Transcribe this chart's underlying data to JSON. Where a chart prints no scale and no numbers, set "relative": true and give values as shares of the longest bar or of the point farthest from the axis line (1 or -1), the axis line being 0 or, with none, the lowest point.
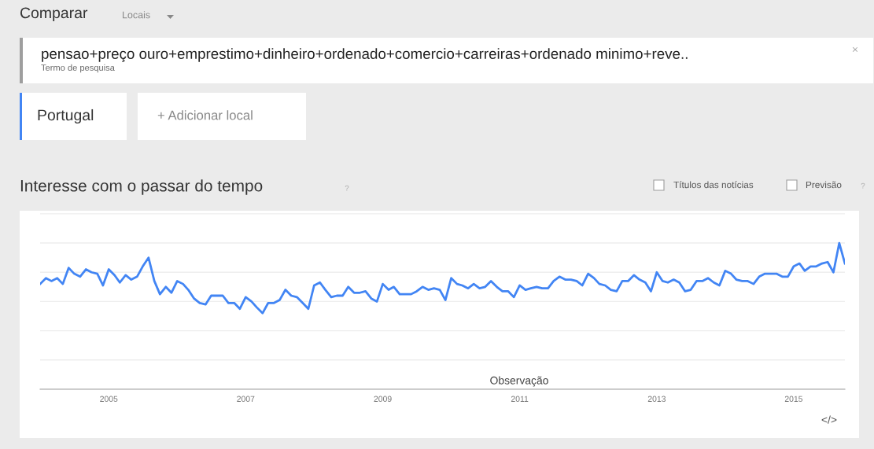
{
  "chart_data": {
    "type": "line",
    "title": "Interesse com o passar do tempo",
    "relative": true,
    "x": [
      "2004-01",
      "2004-02",
      "2004-03",
      "2004-04",
      "2004-05",
      "2004-06",
      "2004-07",
      "2004-08",
      "2004-09",
      "2004-10",
      "2004-11",
      "2004-12",
      "2005-01",
      "2005-02",
      "2005-03",
      "2005-04",
      "2005-05",
      "2005-06",
      "2005-07",
      "2005-08",
      "2005-09",
      "2005-10",
      "2005-11",
      "2005-12",
      "2006-01",
      "2006-02",
      "2006-03",
      "2006-04",
      "2006-05",
      "2006-06",
      "2006-07",
      "2006-08",
      "2006-09",
      "2006-10",
      "2006-11",
      "2006-12",
      "2007-01",
      "2007-02",
      "2007-03",
      "2007-04",
      "2007-05",
      "2007-06",
      "2007-07",
      "2007-08",
      "2007-09",
      "2007-10",
      "2007-11",
      "2007-12",
      "2008-01",
      "2008-02",
      "2008-03",
      "2008-04",
      "2008-05",
      "2008-06",
      "2008-07",
      "2008-08",
      "2008-09",
      "2008-10",
      "2008-11",
      "2008-12",
      "2009-01",
      "2009-02",
      "2009-03",
      "2009-04",
      "2009-05",
      "2009-06",
      "2009-07",
      "2009-08",
      "2009-09",
      "2009-10",
      "2009-11",
      "2009-12",
      "2010-01",
      "2010-02",
      "2010-03",
      "2010-04",
      "2010-05",
      "2010-06",
      "2010-07",
      "2010-08",
      "2010-09",
      "2010-10",
      "2010-11",
      "2010-12",
      "2011-01",
      "2011-02",
      "2011-03",
      "2011-04",
      "2011-05",
      "2011-06",
      "2011-07",
      "2011-08",
      "2011-09",
      "2011-10",
      "2011-11",
      "2011-12",
      "2012-01",
      "2012-02",
      "2012-03",
      "2012-04",
      "2012-05",
      "2012-06",
      "2012-07",
      "2012-08",
      "2012-09",
      "2012-10",
      "2012-11",
      "2012-12",
      "2013-01",
      "2013-02",
      "2013-03",
      "2013-04",
      "2013-05",
      "2013-06",
      "2013-07",
      "2013-08",
      "2013-09",
      "2013-10",
      "2013-11",
      "2013-12",
      "2014-01",
      "2014-02",
      "2014-03",
      "2014-04",
      "2014-05",
      "2014-06",
      "2014-07",
      "2014-08",
      "2014-09",
      "2014-10",
      "2014-11",
      "2014-12",
      "2015-01",
      "2015-02",
      "2015-03",
      "2015-04",
      "2015-05",
      "2015-06",
      "2015-07",
      "2015-08",
      "2015-09",
      "2015-10"
    ],
    "series": [
      {
        "color": "#4285f4",
        "values": [
          0.72,
          0.76,
          0.74,
          0.76,
          0.72,
          0.83,
          0.79,
          0.77,
          0.82,
          0.8,
          0.79,
          0.71,
          0.82,
          0.78,
          0.73,
          0.78,
          0.75,
          0.77,
          0.84,
          0.9,
          0.74,
          0.65,
          0.7,
          0.66,
          0.74,
          0.72,
          0.68,
          0.62,
          0.59,
          0.58,
          0.64,
          0.64,
          0.64,
          0.59,
          0.59,
          0.55,
          0.63,
          0.6,
          0.56,
          0.52,
          0.59,
          0.59,
          0.61,
          0.68,
          0.64,
          0.63,
          0.59,
          0.55,
          0.71,
          0.73,
          0.68,
          0.63,
          0.64,
          0.64,
          0.7,
          0.66,
          0.66,
          0.67,
          0.62,
          0.6,
          0.72,
          0.68,
          0.7,
          0.65,
          0.65,
          0.65,
          0.67,
          0.7,
          0.68,
          0.69,
          0.68,
          0.61,
          0.76,
          0.72,
          0.71,
          0.69,
          0.72,
          0.69,
          0.7,
          0.74,
          0.7,
          0.67,
          0.67,
          0.63,
          0.71,
          0.68,
          0.69,
          0.7,
          0.69,
          0.69,
          0.74,
          0.77,
          0.75,
          0.75,
          0.74,
          0.71,
          0.79,
          0.76,
          0.72,
          0.71,
          0.68,
          0.67,
          0.74,
          0.74,
          0.78,
          0.75,
          0.73,
          0.67,
          0.8,
          0.74,
          0.73,
          0.75,
          0.73,
          0.67,
          0.68,
          0.74,
          0.74,
          0.76,
          0.73,
          0.71,
          0.81,
          0.79,
          0.75,
          0.74,
          0.74,
          0.72,
          0.77,
          0.79,
          0.79,
          0.79,
          0.77,
          0.77,
          0.84,
          0.86,
          0.81,
          0.84,
          0.84,
          0.86,
          0.87,
          0.8,
          1.0,
          0.86
        ]
      }
    ],
    "xlim": [
      "2004-01",
      "2015-10"
    ],
    "xticks": [
      "2005",
      "2007",
      "2009",
      "2011",
      "2013",
      "2015"
    ],
    "grid": "y",
    "marker": "none",
    "line_style": "solid",
    "annotations": [
      "Comparar",
      "Locais",
      "pensao+preço ouro+emprestimo+dinheiro+ordenado+comercio+carreiras+ordenado minimo+reve..",
      "Termo de pesquisa",
      "×",
      "Portugal",
      "+ Adicionar local",
      "?",
      "Títulos das notícias",
      "Previsão",
      "?",
      "Observação",
      "</>"
    ]
  }
}
